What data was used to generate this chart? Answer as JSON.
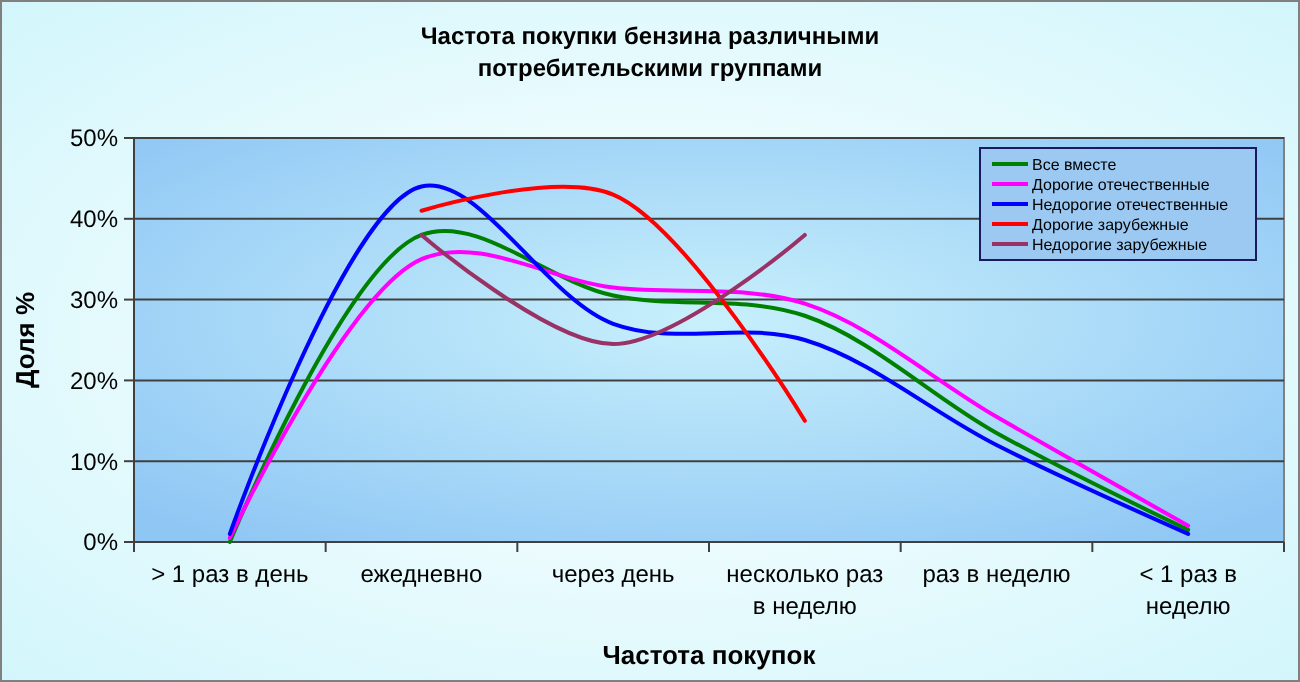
{
  "chart_data": {
    "type": "line",
    "title": "Частота покупки бензина различными потребительскими группами",
    "xlabel": "Частота покупок",
    "ylabel": "Доля %",
    "categories": [
      "> 1 раз в день",
      "ежедневно",
      "через день",
      "несколько раз в неделю",
      "раз в неделю",
      "< 1 раз в неделю"
    ],
    "series": [
      {
        "name": "Все вместе",
        "color": "#008000",
        "values": [
          0,
          38,
          30.5,
          28,
          13.5,
          1.5
        ]
      },
      {
        "name": "Дорогие отечественные",
        "color": "#ff00ff",
        "values": [
          0.5,
          35,
          31.5,
          29.5,
          15.5,
          2
        ]
      },
      {
        "name": "Недорогие отечественные",
        "color": "#0000ff",
        "values": [
          1,
          44,
          27,
          25,
          12,
          1
        ]
      },
      {
        "name": "Дорогие зарубежные",
        "color": "#ff0000",
        "values": [
          null,
          41,
          43,
          15,
          null,
          null
        ]
      },
      {
        "name": "Недорогие зарубежные",
        "color": "#993366",
        "values": [
          null,
          38,
          24.5,
          38,
          null,
          null
        ]
      }
    ],
    "ylim": [
      0,
      50
    ],
    "yticks": [
      {
        "value": 0,
        "label": "0%"
      },
      {
        "value": 10,
        "label": "10%"
      },
      {
        "value": 20,
        "label": "20%"
      },
      {
        "value": 30,
        "label": "30%"
      },
      {
        "value": 40,
        "label": "40%"
      },
      {
        "value": 50,
        "label": "50%"
      }
    ],
    "grid": "y",
    "legend": "top right",
    "marker": "none",
    "line_style": "solid"
  }
}
